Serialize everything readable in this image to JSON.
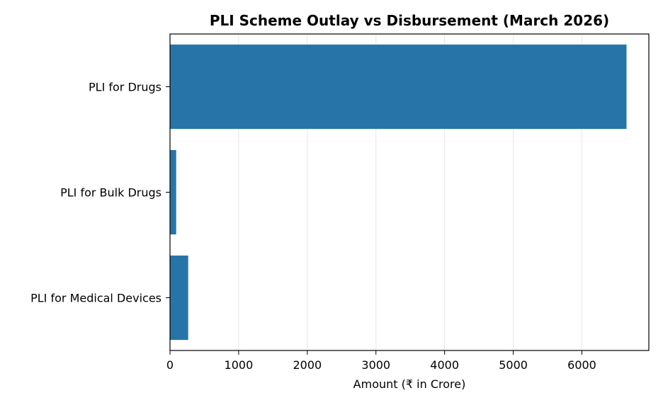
{
  "chart_data": {
    "type": "bar",
    "orientation": "horizontal",
    "title": "PLI Scheme Outlay vs Disbursement (March 2026)",
    "xlabel": "Amount (₹ in Crore)",
    "ylabel": "",
    "categories": [
      "PLI for Drugs",
      "PLI for Bulk Drugs",
      "PLI for Medical Devices"
    ],
    "values": [
      6650,
      90,
      265
    ],
    "xlim": [
      0,
      6975
    ],
    "xticks": [
      0,
      1000,
      2000,
      3000,
      4000,
      5000,
      6000
    ],
    "xtick_labels": [
      "0",
      "1000",
      "2000",
      "3000",
      "4000",
      "5000",
      "6000"
    ],
    "grid": "x",
    "bar_color": "#2775a8",
    "grid_color": "#e6e6e6"
  }
}
